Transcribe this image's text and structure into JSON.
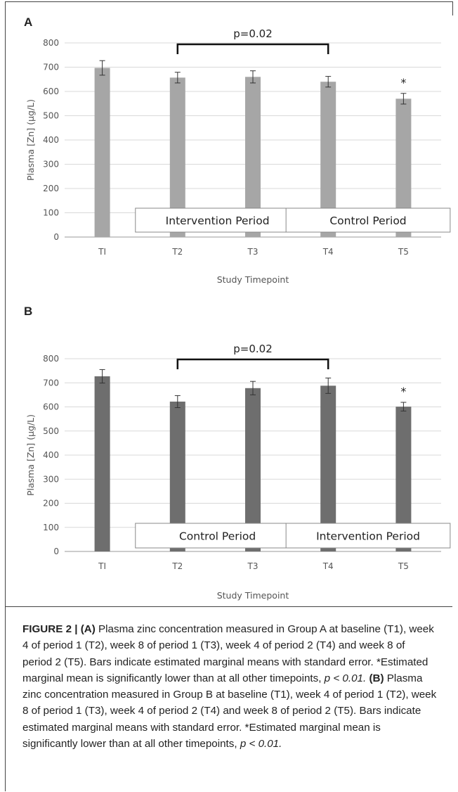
{
  "chart_data": [
    {
      "panel": "A",
      "type": "bar",
      "categories": [
        "TI",
        "T2",
        "T3",
        "T4",
        "T5"
      ],
      "values": [
        697,
        657,
        660,
        640,
        570
      ],
      "errors": [
        30,
        22,
        25,
        22,
        22
      ],
      "ylabel": "Plasma [Zn] (µg/L)",
      "xlabel": "Study Timepoint",
      "ylim": [
        0,
        800
      ],
      "yticks": [
        0,
        100,
        200,
        300,
        400,
        500,
        600,
        700,
        800
      ],
      "grid": true,
      "bar_color": "#a6a6a6",
      "significance": {
        "label": "p=0.02",
        "from": "T2",
        "to": "T4"
      },
      "star": {
        "category": "T5",
        "label": "*"
      },
      "periods": [
        {
          "label": "Intervention  Period",
          "from": "T2",
          "to": "T3"
        },
        {
          "label": "Control  Period",
          "from": "T4",
          "to": "T5"
        }
      ]
    },
    {
      "panel": "B",
      "type": "bar",
      "categories": [
        "TI",
        "T2",
        "T3",
        "T4",
        "T5"
      ],
      "values": [
        727,
        622,
        678,
        688,
        601
      ],
      "errors": [
        28,
        25,
        28,
        32,
        18
      ],
      "ylabel": "Plasma [Zn] (µg/L)",
      "xlabel": "Study Timepoint",
      "ylim": [
        0,
        800
      ],
      "yticks": [
        0,
        100,
        200,
        300,
        400,
        500,
        600,
        700,
        800
      ],
      "grid": true,
      "bar_color": "#6e6e6e",
      "significance": {
        "label": "p=0.02",
        "from": "T2",
        "to": "T4"
      },
      "star": {
        "category": "T5",
        "label": "*"
      },
      "periods": [
        {
          "label": "Control  Period",
          "from": "T2",
          "to": "T3"
        },
        {
          "label": "Intervention  Period",
          "from": "T4",
          "to": "T5"
        }
      ]
    }
  ],
  "caption": {
    "figure_label": "FIGURE 2 | ",
    "part_a_label": "(A)",
    "part_a_text": " Plasma zinc concentration measured in Group A at baseline (T1), week 4 of period 1 (T2), week 8 of period 1 (T3), week 4 of period 2 (T4) and week 8 of period 2 (T5). Bars indicate estimated marginal means with standard error. *Estimated marginal mean is significantly lower than at all other timepoints, ",
    "part_a_p": "p < 0.01. ",
    "part_b_label": "(B)",
    "part_b_text": " Plasma zinc concentration measured in Group B at baseline (T1), week 4 of period 1 (T2), week 8 of period 1 (T3), week 4 of period 2 (T4) and week 8 of period 2 (T5). Bars indicate estimated marginal means with standard error. *Estimated marginal mean is significantly lower than at all other timepoints, ",
    "part_b_p": "p < 0.01."
  }
}
